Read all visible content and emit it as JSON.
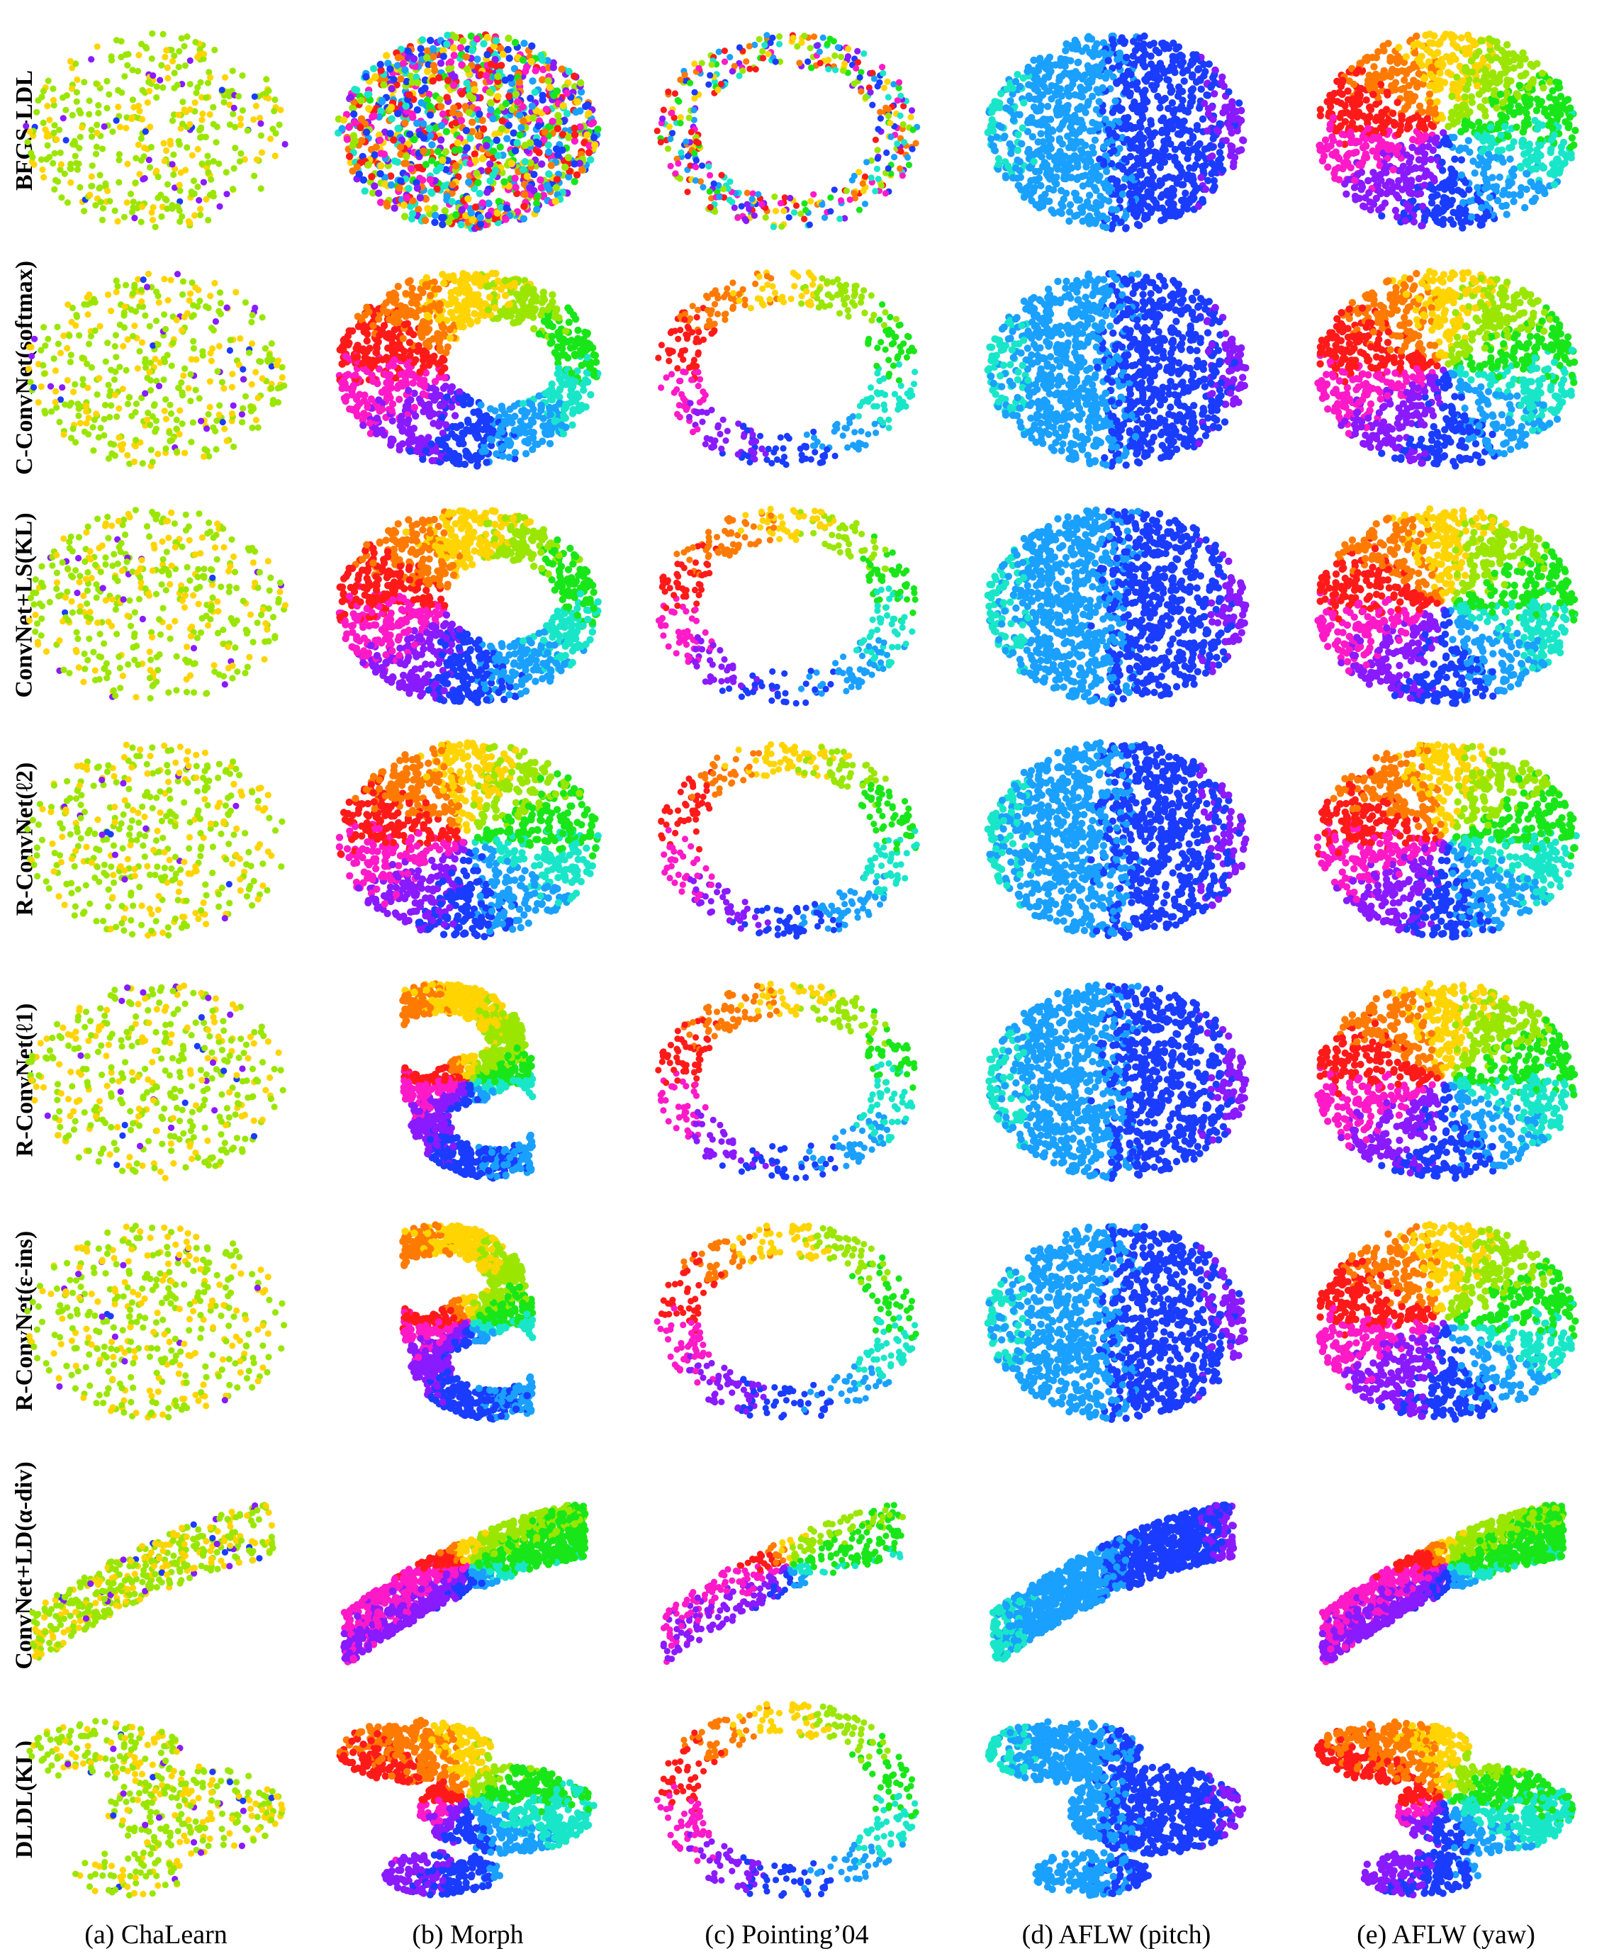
{
  "figure": {
    "row_labels": [
      "BFGS-LDL",
      "C-ConvNet(softmax)",
      "ConvNet+LS(KL)",
      "R-ConvNet(ℓ2)",
      "R-ConvNet(ℓ1)",
      "R-ConvNet(ε-ins)",
      "ConvNet+LD(α-div)",
      "DLDL(KL)"
    ],
    "column_captions": [
      "(a) ChaLearn",
      "(b) Morph",
      "(c) Pointing’04",
      "(d) AFLW (pitch)",
      "(e) AFLW (yaw)"
    ],
    "colormap": "hsv (red → orange → yellow → green → cyan → blue → magenta)",
    "palette": [
      "#ff1a1a",
      "#ff7a00",
      "#ffd400",
      "#9ae600",
      "#19e619",
      "#19e6c8",
      "#1aa0ff",
      "#1a3cff",
      "#8a1aff",
      "#ff1ac8"
    ]
  }
}
